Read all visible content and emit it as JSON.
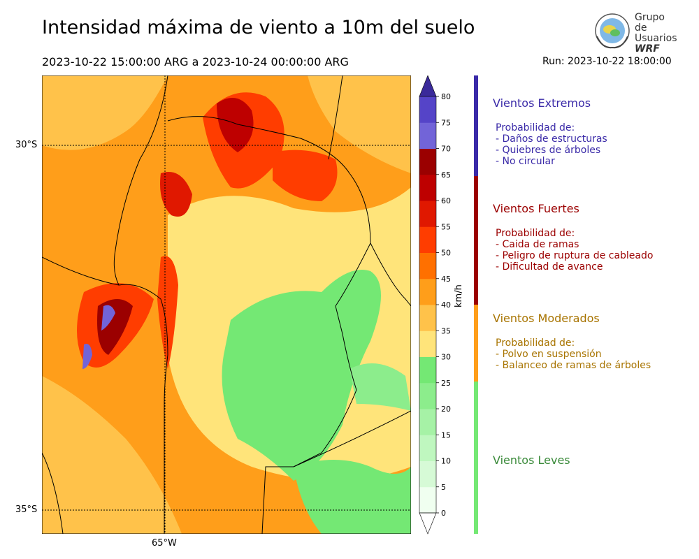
{
  "title": "Intensidad máxima de viento a 10m del suelo",
  "period": "2023-10-22 15:00:00 ARG  a  2023-10-24 00:00:00 ARG",
  "run": "Run: 2023-10-22 18:00:00",
  "logo": {
    "line1": "Grupo de",
    "line2": "Usuarios",
    "line3": "WRF"
  },
  "map": {
    "lat_labels": [
      "30°S",
      "35°S"
    ],
    "lon_labels": [
      "65°W"
    ]
  },
  "colorbar": {
    "unit": "km/h",
    "ticks": [
      "0",
      "5",
      "10",
      "15",
      "20",
      "25",
      "30",
      "35",
      "40",
      "45",
      "50",
      "55",
      "60",
      "65",
      "70",
      "75",
      "80"
    ],
    "colors": [
      "#f0fff0",
      "#d6fad6",
      "#bff7bf",
      "#a6f2a6",
      "#8ced8c",
      "#74e874",
      "#ffe47a",
      "#ffc24a",
      "#ff9e1a",
      "#ff7000",
      "#ff3d00",
      "#e01800",
      "#be0000",
      "#9b0000",
      "#7264d8",
      "#5544c8",
      "#3f2aa8"
    ],
    "over_color": "#3a2a9a"
  },
  "categories": [
    {
      "title": "Vientos Extremos",
      "color": "#3a2aa8",
      "lines": [
        "Probabilidad de:",
        "- Daños de estructuras",
        "- Quiebres de árboles",
        "- No circular"
      ]
    },
    {
      "title": "Vientos Fuertes",
      "color": "#9b0000",
      "lines": [
        "Probabilidad de:",
        "- Caida de ramas",
        "- Peligro de ruptura de cableado",
        "- Dificultad de avance"
      ]
    },
    {
      "title": "Vientos Moderados",
      "color": "#a87400",
      "lines": [
        "Probabilidad de:",
        "- Polvo en suspensión",
        "- Balanceo de ramas de árboles"
      ]
    },
    {
      "title": "Vientos Leves",
      "color": "#3a8a3a",
      "lines": []
    }
  ]
}
